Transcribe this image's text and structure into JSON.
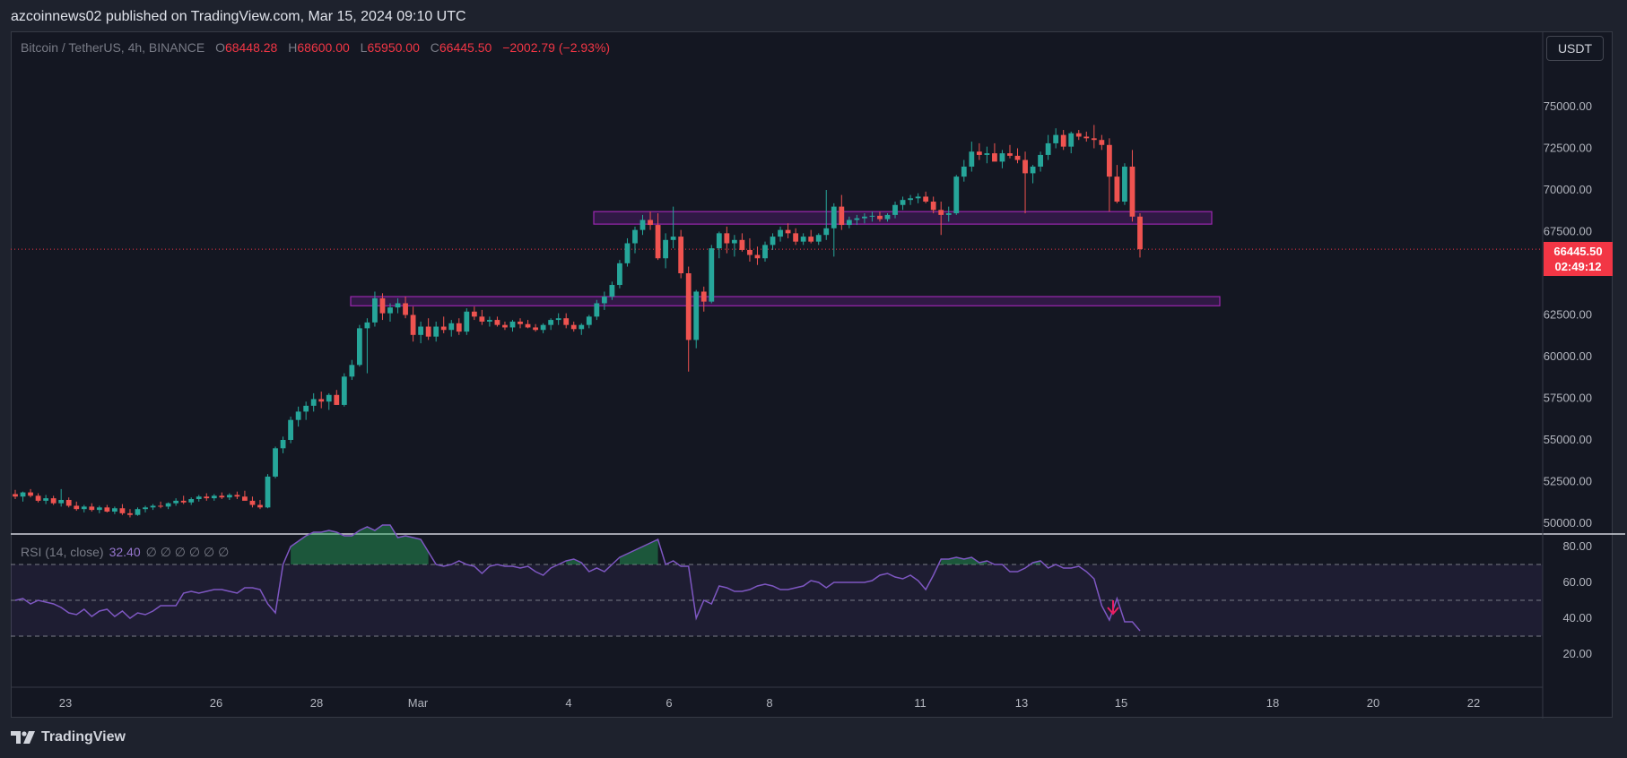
{
  "header": {
    "publisher_line": "azcoinnews02 published on TradingView.com, Mar 15, 2024 09:10 UTC"
  },
  "legend": {
    "symbol": "Bitcoin / TetherUS, 4h, BINANCE",
    "open_label": "O",
    "open": "68448.28",
    "high_label": "H",
    "high": "68600.00",
    "low_label": "L",
    "low": "65950.00",
    "close_label": "C",
    "close": "66445.50",
    "change": "−2002.79 (−2.93%)"
  },
  "rsi_legend": {
    "name": "RSI (14, close)",
    "value": "32.40",
    "extras": "∅ ∅ ∅ ∅ ∅ ∅"
  },
  "currency_button": "USDT",
  "price_badge": {
    "price": "66445.50",
    "countdown": "02:49:12"
  },
  "footer": {
    "brand": "TradingView"
  },
  "colors": {
    "up": "#26a69a",
    "down": "#ef5350",
    "rsi": "#7e57c2",
    "zone": "#9c27b0",
    "background": "#141722"
  },
  "chart_data": {
    "type": "candlestick",
    "price_axis": {
      "ticks": [
        "75000.00",
        "72500.00",
        "70000.00",
        "67500.00",
        "62500.00",
        "60000.00",
        "57500.00",
        "55000.00",
        "52500.00",
        "50000.00"
      ],
      "range": [
        49500,
        77500
      ]
    },
    "time_axis": {
      "ticks": [
        "23",
        "26",
        "28",
        "Mar",
        "4",
        "6",
        "8",
        "11",
        "13",
        "15",
        "18",
        "20",
        "22"
      ]
    },
    "rsi_axis": {
      "ticks": [
        "80.00",
        "60.00",
        "40.00",
        "20.00"
      ],
      "bands": [
        30,
        50,
        70
      ],
      "range": [
        12,
        93
      ]
    },
    "last_price": 66445.5,
    "zones": [
      {
        "from": 67950,
        "to": 68700,
        "x_start": "Mar 4",
        "x_end": "Mar 17"
      },
      {
        "from": 63050,
        "to": 63600,
        "x_start": "Feb 29",
        "x_end": "Mar 17"
      }
    ],
    "candles": [
      [
        51750,
        52000,
        51450,
        51600
      ],
      [
        51600,
        51900,
        51300,
        51850
      ],
      [
        51850,
        52050,
        51550,
        51650
      ],
      [
        51650,
        51800,
        51250,
        51350
      ],
      [
        51350,
        51700,
        51150,
        51500
      ],
      [
        51500,
        51650,
        51100,
        51200
      ],
      [
        51200,
        52050,
        51000,
        51400
      ],
      [
        51400,
        51550,
        50950,
        51050
      ],
      [
        51050,
        51300,
        50750,
        50850
      ],
      [
        50850,
        51100,
        50650,
        51000
      ],
      [
        51000,
        51200,
        50700,
        50800
      ],
      [
        50800,
        51050,
        50600,
        50950
      ],
      [
        50950,
        51100,
        50650,
        50700
      ],
      [
        50700,
        51000,
        50550,
        50900
      ],
      [
        50900,
        51150,
        50500,
        50600
      ],
      [
        50600,
        50850,
        50350,
        50500
      ],
      [
        50500,
        50950,
        50450,
        50850
      ],
      [
        50850,
        51050,
        50650,
        50950
      ],
      [
        50950,
        51150,
        50800,
        51050
      ],
      [
        51050,
        51300,
        50900,
        51000
      ],
      [
        51000,
        51250,
        50850,
        51200
      ],
      [
        51200,
        51500,
        51050,
        51350
      ],
      [
        51350,
        51650,
        51150,
        51250
      ],
      [
        51250,
        51550,
        51100,
        51450
      ],
      [
        51450,
        51700,
        51300,
        51600
      ],
      [
        51600,
        51800,
        51350,
        51500
      ],
      [
        51500,
        51750,
        51350,
        51650
      ],
      [
        51650,
        51850,
        51450,
        51550
      ],
      [
        51550,
        51800,
        51400,
        51700
      ],
      [
        51700,
        51900,
        51450,
        51600
      ],
      [
        51600,
        51950,
        51400,
        51350
      ],
      [
        51350,
        51600,
        50950,
        51100
      ],
      [
        51100,
        51400,
        50850,
        50950
      ],
      [
        50950,
        52950,
        50900,
        52800
      ],
      [
        52800,
        54600,
        52700,
        54500
      ],
      [
        54500,
        55200,
        54200,
        55000
      ],
      [
        55000,
        56400,
        54800,
        56200
      ],
      [
        56200,
        57000,
        55800,
        56700
      ],
      [
        56700,
        57300,
        56200,
        57050
      ],
      [
        57050,
        57800,
        56700,
        57450
      ],
      [
        57450,
        57900,
        56900,
        57300
      ],
      [
        57300,
        57800,
        56800,
        57700
      ],
      [
        57700,
        58000,
        57100,
        57100
      ],
      [
        57100,
        59000,
        57000,
        58800
      ],
      [
        58800,
        59800,
        58600,
        59500
      ],
      [
        59500,
        61900,
        59400,
        61700
      ],
      [
        61700,
        62300,
        59000,
        62050
      ],
      [
        62050,
        63900,
        61800,
        63500
      ],
      [
        63500,
        63800,
        62200,
        62600
      ],
      [
        62600,
        63200,
        62100,
        62950
      ],
      [
        62950,
        63500,
        62600,
        63200
      ],
      [
        63200,
        63600,
        62300,
        62500
      ],
      [
        62500,
        63000,
        60900,
        61300
      ],
      [
        61300,
        62100,
        60800,
        61800
      ],
      [
        61800,
        62300,
        61000,
        61200
      ],
      [
        61200,
        62100,
        60900,
        61800
      ],
      [
        61800,
        62400,
        61400,
        61600
      ],
      [
        61600,
        62200,
        61200,
        62000
      ],
      [
        62000,
        62300,
        61300,
        61500
      ],
      [
        61500,
        62900,
        61300,
        62700
      ],
      [
        62700,
        63000,
        62200,
        62400
      ],
      [
        62400,
        62800,
        61900,
        62100
      ],
      [
        62100,
        62400,
        61800,
        62200
      ],
      [
        62200,
        62400,
        61800,
        61900
      ],
      [
        61900,
        62100,
        61600,
        61750
      ],
      [
        61750,
        62200,
        61500,
        62100
      ],
      [
        62100,
        62300,
        61700,
        61950
      ],
      [
        61950,
        62200,
        61700,
        61750
      ],
      [
        61750,
        61950,
        61500,
        61600
      ],
      [
        61600,
        62000,
        61400,
        61900
      ],
      [
        61900,
        62300,
        61600,
        62200
      ],
      [
        62200,
        62600,
        61900,
        62300
      ],
      [
        62300,
        62600,
        61700,
        61900
      ],
      [
        61900,
        62100,
        61500,
        61650
      ],
      [
        61650,
        62000,
        61300,
        61900
      ],
      [
        61900,
        62500,
        61700,
        62400
      ],
      [
        62400,
        63400,
        62200,
        63200
      ],
      [
        63200,
        63900,
        62800,
        63600
      ],
      [
        63600,
        64500,
        63400,
        64300
      ],
      [
        64300,
        65800,
        64100,
        65600
      ],
      [
        65600,
        67100,
        65400,
        66800
      ],
      [
        66800,
        67800,
        66200,
        67600
      ],
      [
        67600,
        68500,
        67300,
        68200
      ],
      [
        68200,
        68700,
        67600,
        67900
      ],
      [
        67900,
        68600,
        65800,
        65900
      ],
      [
        65900,
        67400,
        65300,
        67000
      ],
      [
        67000,
        69000,
        66500,
        67200
      ],
      [
        67200,
        67600,
        64700,
        65000
      ],
      [
        65000,
        65400,
        59100,
        61000
      ],
      [
        61000,
        64000,
        60500,
        63900
      ],
      [
        63900,
        64200,
        62700,
        63300
      ],
      [
        63300,
        66700,
        63200,
        66500
      ],
      [
        66500,
        67500,
        65900,
        67400
      ],
      [
        67400,
        67800,
        66200,
        66800
      ],
      [
        66800,
        67300,
        66000,
        67000
      ],
      [
        67000,
        67400,
        66300,
        66400
      ],
      [
        66400,
        67100,
        65700,
        66100
      ],
      [
        66100,
        66600,
        65500,
        65900
      ],
      [
        65900,
        66900,
        65700,
        66700
      ],
      [
        66700,
        67400,
        66400,
        67200
      ],
      [
        67200,
        67800,
        66900,
        67600
      ],
      [
        67600,
        68000,
        67100,
        67400
      ],
      [
        67400,
        67700,
        66700,
        66900
      ],
      [
        66900,
        67400,
        66700,
        67200
      ],
      [
        67200,
        67600,
        66800,
        66900
      ],
      [
        66900,
        67400,
        66700,
        67300
      ],
      [
        67300,
        70000,
        67000,
        67700
      ],
      [
        67700,
        69200,
        66000,
        69000
      ],
      [
        69000,
        69700,
        67600,
        67900
      ],
      [
        67900,
        68400,
        67700,
        68200
      ],
      [
        68200,
        68500,
        67900,
        68300
      ],
      [
        68300,
        68600,
        68000,
        68400
      ],
      [
        68400,
        68700,
        68100,
        68450
      ],
      [
        68450,
        68700,
        68100,
        68250
      ],
      [
        68250,
        68600,
        68100,
        68500
      ],
      [
        68500,
        69300,
        68300,
        69100
      ],
      [
        69100,
        69600,
        68800,
        69400
      ],
      [
        69400,
        69700,
        69100,
        69500
      ],
      [
        69500,
        69800,
        69200,
        69600
      ],
      [
        69600,
        69900,
        69200,
        69300
      ],
      [
        69300,
        69600,
        68600,
        68800
      ],
      [
        68800,
        69300,
        67300,
        68500
      ],
      [
        68500,
        69000,
        68100,
        68600
      ],
      [
        68600,
        70900,
        68500,
        70800
      ],
      [
        70800,
        71800,
        70500,
        71400
      ],
      [
        71400,
        72900,
        71100,
        72300
      ],
      [
        72300,
        72800,
        71800,
        72100
      ],
      [
        72100,
        72600,
        71600,
        72200
      ],
      [
        72200,
        72800,
        71800,
        71700
      ],
      [
        71700,
        72400,
        71300,
        72200
      ],
      [
        72200,
        72700,
        71900,
        72050
      ],
      [
        72050,
        72500,
        71600,
        71800
      ],
      [
        71800,
        72300,
        68600,
        71000
      ],
      [
        71000,
        71500,
        70400,
        71400
      ],
      [
        71400,
        72300,
        71100,
        72100
      ],
      [
        72100,
        73300,
        71800,
        72800
      ],
      [
        72800,
        73700,
        72500,
        73300
      ],
      [
        73300,
        73600,
        72400,
        72600
      ],
      [
        72600,
        73500,
        72200,
        73400
      ],
      [
        73400,
        73600,
        73000,
        73200
      ],
      [
        73200,
        73500,
        72900,
        73100
      ],
      [
        73100,
        73900,
        72500,
        73000
      ],
      [
        73000,
        73300,
        72400,
        72700
      ],
      [
        72700,
        73100,
        68700,
        70800
      ],
      [
        70800,
        71500,
        69200,
        69300
      ],
      [
        69300,
        71600,
        69100,
        71400
      ],
      [
        71400,
        72400,
        68100,
        68400
      ],
      [
        68400,
        68600,
        65950,
        66445.5
      ]
    ],
    "rsi": [
      50,
      51,
      48,
      50,
      49,
      48,
      46,
      43,
      42,
      45,
      41,
      44,
      45,
      41,
      44,
      40,
      43,
      42,
      44,
      47,
      47,
      47,
      54,
      55,
      54,
      55,
      56,
      56,
      55,
      54,
      57,
      57,
      56,
      48,
      43,
      70,
      80,
      83,
      86,
      88,
      88,
      89,
      88,
      86,
      86,
      89,
      91,
      89,
      92,
      92,
      85,
      86,
      85,
      84,
      77,
      70,
      69,
      70,
      72,
      70,
      69,
      65,
      69,
      70,
      69,
      69,
      68,
      69,
      66,
      64,
      68,
      70,
      72,
      73,
      71,
      66,
      68,
      66,
      70,
      74,
      76,
      78,
      80,
      82,
      84,
      70,
      72,
      69,
      69,
      40,
      50,
      48,
      58,
      57,
      55,
      55,
      56,
      58,
      59,
      58,
      56,
      56,
      57,
      58,
      61,
      60,
      57,
      60,
      60,
      60,
      60,
      60,
      61,
      64,
      65,
      63,
      62,
      64,
      61,
      56,
      64,
      73,
      73,
      74,
      73,
      74,
      71,
      72,
      70,
      70,
      66,
      66,
      68,
      71,
      72,
      68,
      70,
      68,
      68,
      69,
      66,
      62,
      47,
      39,
      51,
      38,
      38,
      33
    ]
  }
}
